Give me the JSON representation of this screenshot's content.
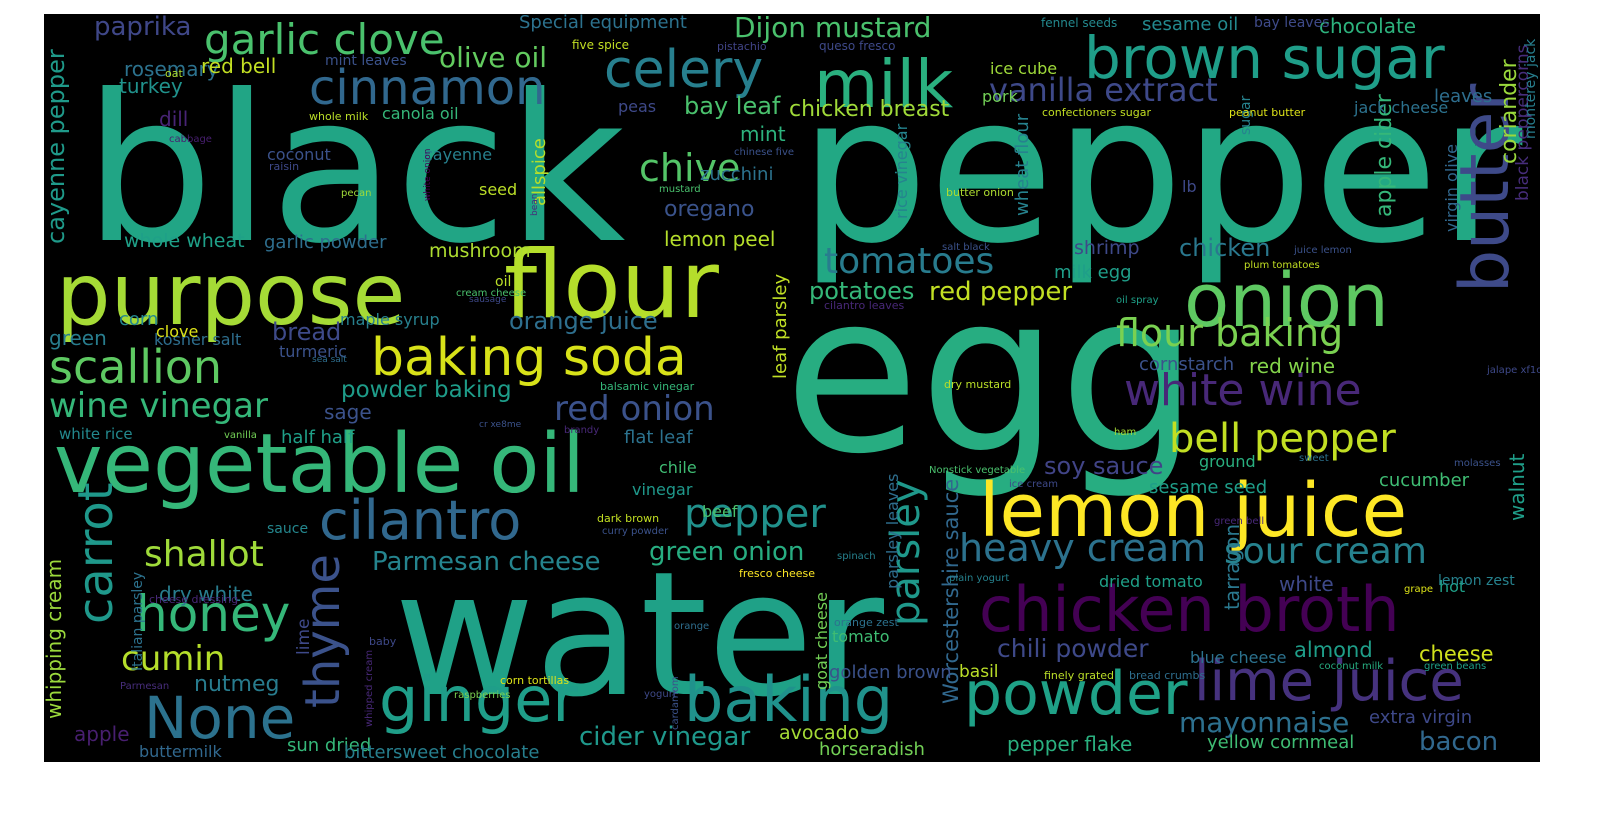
{
  "words": [
    {
      "text": "black",
      "color": "#21a585"
    },
    {
      "text": "pepper",
      "color": "#22a884"
    },
    {
      "text": "egg",
      "color": "#27ad81"
    },
    {
      "text": "water",
      "color": "#1fa187"
    },
    {
      "text": "purpose",
      "color": "#a5db36"
    },
    {
      "text": "flour",
      "color": "#b5de2b"
    },
    {
      "text": "vegetable oil",
      "color": "#35b779"
    },
    {
      "text": "onion",
      "color": "#5ec962"
    },
    {
      "text": "butter",
      "color": "#3e4a89"
    },
    {
      "text": "lemon juice",
      "color": "#fde725"
    },
    {
      "text": "milk",
      "color": "#2ab07f"
    },
    {
      "text": "brown sugar",
      "color": "#1f9e89"
    },
    {
      "text": "chicken broth",
      "color": "#440154"
    },
    {
      "text": "baking soda",
      "color": "#d8e219"
    },
    {
      "text": "cilantro",
      "color": "#31688e"
    },
    {
      "text": "ginger",
      "color": "#1f9e89"
    },
    {
      "text": "baking",
      "color": "#20928c"
    },
    {
      "text": "powder",
      "color": "#1fa187"
    },
    {
      "text": "lime juice",
      "color": "#46327e"
    },
    {
      "text": "celery",
      "color": "#277f8e"
    },
    {
      "text": "cinnamon",
      "color": "#31688e"
    },
    {
      "text": "garlic clove",
      "color": "#4ac16d"
    },
    {
      "text": "None",
      "color": "#2c728e"
    },
    {
      "text": "carrot",
      "color": "#1f988b"
    },
    {
      "text": "thyme",
      "color": "#3b528b"
    },
    {
      "text": "honey",
      "color": "#35b779"
    },
    {
      "text": "scallion",
      "color": "#5ec962"
    },
    {
      "text": "white wine",
      "color": "#482878"
    },
    {
      "text": "bell pepper",
      "color": "#c2df23"
    },
    {
      "text": "sour cream",
      "color": "#26828e"
    },
    {
      "text": "heavy cream",
      "color": "#2c728e"
    },
    {
      "text": "parsley",
      "color": "#1f988b"
    },
    {
      "text": "pepper",
      "color": "#21918c"
    },
    {
      "text": "flour baking",
      "color": "#7ad151"
    },
    {
      "text": "tomatoes",
      "color": "#287c8e"
    },
    {
      "text": "chive",
      "color": "#54c568"
    },
    {
      "text": "red onion",
      "color": "#3b528b"
    },
    {
      "text": "wine vinegar",
      "color": "#35b779"
    },
    {
      "text": "shallot",
      "color": "#9fda3a"
    },
    {
      "text": "cumin",
      "color": "#b5de2b"
    },
    {
      "text": "vanilla extract",
      "color": "#3e4989"
    },
    {
      "text": "mayonnaise",
      "color": "#2d708e"
    },
    {
      "text": "chili powder",
      "color": "#3e4989"
    },
    {
      "text": "Parmesan cheese",
      "color": "#25848e"
    },
    {
      "text": "green onion",
      "color": "#27ad81"
    },
    {
      "text": "cider vinegar",
      "color": "#1f988b"
    },
    {
      "text": "Dijon mustard",
      "color": "#4ac16d"
    },
    {
      "text": "olive oil",
      "color": "#63cb5f"
    },
    {
      "text": "orange juice",
      "color": "#2e6f8e"
    },
    {
      "text": "red pepper",
      "color": "#c2df23"
    },
    {
      "text": "potatoes",
      "color": "#35b779"
    },
    {
      "text": "soy sauce",
      "color": "#414487"
    },
    {
      "text": "chicken",
      "color": "#2a788e"
    },
    {
      "text": "paprika",
      "color": "#3f4788"
    },
    {
      "text": "cayenne pepper",
      "color": "#1f9a8a"
    },
    {
      "text": "whipping cream",
      "color": "#9bd93c"
    },
    {
      "text": "Worcestershire sauce",
      "color": "#31688e"
    },
    {
      "text": "bacon",
      "color": "#31688e"
    },
    {
      "text": "nutmeg",
      "color": "#287c8e"
    },
    {
      "text": "oregano",
      "color": "#3a538b"
    },
    {
      "text": "bay leaf",
      "color": "#4ac16d"
    },
    {
      "text": "chicken breast",
      "color": "#a0da39"
    },
    {
      "text": "coriander",
      "color": "#9bd93c"
    },
    {
      "text": "apple cider",
      "color": "#35b779"
    },
    {
      "text": "walnut",
      "color": "#1f9e89"
    },
    {
      "text": "almond",
      "color": "#1f9e89"
    },
    {
      "text": "cheese",
      "color": "#d0e11c"
    },
    {
      "text": "cucumber",
      "color": "#3fbc73"
    },
    {
      "text": "bread",
      "color": "#3e4a89"
    },
    {
      "text": "sage",
      "color": "#3b528b"
    },
    {
      "text": "powder baking",
      "color": "#1e9c89"
    },
    {
      "text": "rosemary",
      "color": "#2c728e"
    },
    {
      "text": "red bell",
      "color": "#c2df23"
    },
    {
      "text": "turkey",
      "color": "#20928c"
    },
    {
      "text": "dill",
      "color": "#482475"
    },
    {
      "text": "mushroom",
      "color": "#addc30"
    },
    {
      "text": "whole wheat",
      "color": "#1fa088"
    },
    {
      "text": "garlic powder",
      "color": "#2e6e8e"
    },
    {
      "text": "lemon peel",
      "color": "#b5de2b"
    },
    {
      "text": "mint",
      "color": "#2db27d"
    },
    {
      "text": "zucchini",
      "color": "#2c738e"
    },
    {
      "text": "leaf parsley",
      "color": "#c0df25"
    },
    {
      "text": "tarragon",
      "color": "#2a788e"
    },
    {
      "text": "wheat flour",
      "color": "#26828e"
    },
    {
      "text": "black peppercorns",
      "color": "#472d7b"
    },
    {
      "text": "Special equipment",
      "color": "#2c728e"
    },
    {
      "text": "sesame oil",
      "color": "#23898e"
    },
    {
      "text": "chocolate",
      "color": "#2db27d"
    },
    {
      "text": "bay leaves",
      "color": "#3e4a89"
    },
    {
      "text": "leaves",
      "color": "#2e6e8e"
    },
    {
      "text": "jack cheese",
      "color": "#2c728e"
    },
    {
      "text": "monterey jack",
      "color": "#277f8e"
    },
    {
      "text": "virgin olive",
      "color": "#31688e"
    },
    {
      "text": "sugar",
      "color": "#26828e"
    },
    {
      "text": "shrimp",
      "color": "#3e4989"
    },
    {
      "text": "milk egg",
      "color": "#1f9e89"
    },
    {
      "text": "red wine",
      "color": "#84d44b"
    },
    {
      "text": "cornstarch",
      "color": "#3b528b"
    },
    {
      "text": "sesame seed",
      "color": "#1f9e89"
    },
    {
      "text": "ground",
      "color": "#29af7f"
    },
    {
      "text": "green",
      "color": "#287d8e"
    },
    {
      "text": "corn",
      "color": "#24878e"
    },
    {
      "text": "kosher salt",
      "color": "#2e6e8e"
    },
    {
      "text": "turmeric",
      "color": "#3b528b"
    },
    {
      "text": "maple syrup",
      "color": "#27808e"
    },
    {
      "text": "clove",
      "color": "#dde318"
    },
    {
      "text": "white rice",
      "color": "#23898e"
    },
    {
      "text": "half half",
      "color": "#1fa088"
    },
    {
      "text": "flat leaf",
      "color": "#2c728e"
    },
    {
      "text": "chile",
      "color": "#3fbc73"
    },
    {
      "text": "vinegar",
      "color": "#1f988b"
    },
    {
      "text": "beef",
      "color": "#4ac16d"
    },
    {
      "text": "sauce",
      "color": "#24878e"
    },
    {
      "text": "dry white",
      "color": "#287d8e"
    },
    {
      "text": "apple",
      "color": "#481f70"
    },
    {
      "text": "buttermilk",
      "color": "#31688e"
    },
    {
      "text": "sun dried",
      "color": "#35b779"
    },
    {
      "text": "bittersweet chocolate",
      "color": "#277f8e"
    },
    {
      "text": "avocado",
      "color": "#a5db36"
    },
    {
      "text": "horseradish",
      "color": "#73d056"
    },
    {
      "text": "tomato",
      "color": "#3fbc73"
    },
    {
      "text": "golden brown",
      "color": "#3b528b"
    },
    {
      "text": "basil",
      "color": "#bade28"
    },
    {
      "text": "pepper flake",
      "color": "#2ab07f"
    },
    {
      "text": "yellow cornmeal",
      "color": "#3fbc73"
    },
    {
      "text": "extra virgin",
      "color": "#3e4989"
    },
    {
      "text": "dried tomato",
      "color": "#1fa088"
    },
    {
      "text": "white",
      "color": "#3e4989"
    },
    {
      "text": "hot",
      "color": "#1fa088"
    },
    {
      "text": "blue cheese",
      "color": "#2c728e"
    },
    {
      "text": "lemon zest",
      "color": "#26828e"
    },
    {
      "text": "lime",
      "color": "#3e4989"
    },
    {
      "text": "coconut",
      "color": "#3b528b"
    },
    {
      "text": "cayenne",
      "color": "#27808e"
    },
    {
      "text": "seed",
      "color": "#bade28"
    },
    {
      "text": "allspice",
      "color": "#b5de2b"
    },
    {
      "text": "canola oil",
      "color": "#35b779"
    },
    {
      "text": "peas",
      "color": "#3e4989"
    },
    {
      "text": "ice cube",
      "color": "#9fda3a"
    },
    {
      "text": "pork",
      "color": "#73d056"
    },
    {
      "text": "rice vinegar",
      "color": "#25848e"
    },
    {
      "text": "parsley leaves",
      "color": "#2e6e8e"
    },
    {
      "text": "goat cheese",
      "color": "#73d056"
    },
    {
      "text": "Italian parsley",
      "color": "#2c728e"
    },
    {
      "text": "lb",
      "color": "#3e4989"
    },
    {
      "text": "oil",
      "color": "#bade28"
    },
    {
      "text": "mint leaves",
      "color": "#3b528b"
    },
    {
      "text": "fennel seeds",
      "color": "#23898e"
    },
    {
      "text": "five spice",
      "color": "#c2df23"
    },
    {
      "text": "pistachio",
      "color": "#414487"
    },
    {
      "text": "queso fresco",
      "color": "#3e4989"
    },
    {
      "text": "oat",
      "color": "#addc30"
    },
    {
      "text": "whole milk",
      "color": "#bade28"
    },
    {
      "text": "confectioners sugar",
      "color": "#c2df23"
    },
    {
      "text": "peanut butter",
      "color": "#dde318"
    },
    {
      "text": "cabbage",
      "color": "#481f70"
    },
    {
      "text": "chinese five",
      "color": "#3b528b"
    },
    {
      "text": "raisin",
      "color": "#3e4989"
    },
    {
      "text": "pecan",
      "color": "#a0da39"
    },
    {
      "text": "white onion",
      "color": "#440154"
    },
    {
      "text": "bean",
      "color": "#472d7b"
    },
    {
      "text": "mustard",
      "color": "#4ac16d"
    },
    {
      "text": "butter onion",
      "color": "#addc30"
    },
    {
      "text": "juice lemon",
      "color": "#3b528b"
    },
    {
      "text": "plum tomatoes",
      "color": "#c2df23"
    },
    {
      "text": "salt black",
      "color": "#3b528b"
    },
    {
      "text": "cream cheese",
      "color": "#4ac16d"
    },
    {
      "text": "sausage",
      "color": "#3e4989"
    },
    {
      "text": "cilantro leaves",
      "color": "#482878"
    },
    {
      "text": "oil spray",
      "color": "#1fa088"
    },
    {
      "text": "sea salt",
      "color": "#2e6e8e"
    },
    {
      "text": "jalape xf1o",
      "color": "#3e4989"
    },
    {
      "text": "balsamic vinegar",
      "color": "#35b779"
    },
    {
      "text": "dry mustard",
      "color": "#bade28"
    },
    {
      "text": "cr xe8me",
      "color": "#3b528b"
    },
    {
      "text": "vanilla",
      "color": "#73d056"
    },
    {
      "text": "brandy",
      "color": "#482878"
    },
    {
      "text": "ham",
      "color": "#a5db36"
    },
    {
      "text": "sweet",
      "color": "#2c728e"
    },
    {
      "text": "molasses",
      "color": "#3b528b"
    },
    {
      "text": "Nonstick vegetable",
      "color": "#4ac16d"
    },
    {
      "text": "ice cream",
      "color": "#3e4989"
    },
    {
      "text": "dark brown",
      "color": "#c2df23"
    },
    {
      "text": "curry powder",
      "color": "#3b528b"
    },
    {
      "text": "green bell",
      "color": "#482878"
    },
    {
      "text": "spinach",
      "color": "#26828e"
    },
    {
      "text": "fresco cheese",
      "color": "#fde725"
    },
    {
      "text": "plain yogurt",
      "color": "#26828e"
    },
    {
      "text": "grape",
      "color": "#dde318"
    },
    {
      "text": "cheese dressing",
      "color": "#482878"
    },
    {
      "text": "orange",
      "color": "#2e6e8e"
    },
    {
      "text": "orange zest",
      "color": "#2c728e"
    },
    {
      "text": "baby",
      "color": "#3e4989"
    },
    {
      "text": "corn tortillas",
      "color": "#dde318"
    },
    {
      "text": "finely grated",
      "color": "#bade28"
    },
    {
      "text": "bread crumbs",
      "color": "#2e6e8e"
    },
    {
      "text": "coconut milk",
      "color": "#27ad81"
    },
    {
      "text": "green beans",
      "color": "#1fa088"
    },
    {
      "text": "whipped cream",
      "color": "#482878"
    },
    {
      "text": "Parmesan",
      "color": "#472d7b"
    },
    {
      "text": "yogurt",
      "color": "#3e4989"
    },
    {
      "text": "cardamom",
      "color": "#3b528b"
    },
    {
      "text": "raspberries",
      "color": "#7ad151"
    }
  ]
}
